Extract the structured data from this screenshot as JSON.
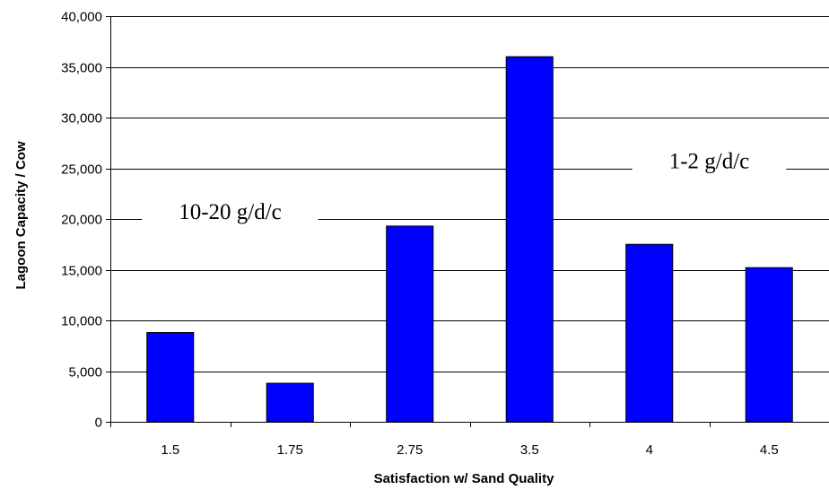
{
  "chart_data": {
    "type": "bar",
    "categories": [
      "1.5",
      "1.75",
      "2.75",
      "3.5",
      "4",
      "4.5"
    ],
    "values": [
      8800,
      3800,
      19300,
      36000,
      17500,
      15200
    ],
    "xlabel": "Satisfaction w/ Sand Quality",
    "ylabel": "Lagoon Capacity / Cow",
    "ylim": [
      0,
      40000
    ],
    "yticks": [
      "0",
      "5,000",
      "10,000",
      "15,000",
      "20,000",
      "25,000",
      "30,000",
      "35,000",
      "40,000"
    ],
    "grid": true,
    "legend": "none",
    "bar_color": "#0000FF",
    "bar_edge_color": "#000000",
    "annotations": [
      {
        "text": "10-20 g/d/c",
        "x_between": [
          "1.5",
          "1.75"
        ],
        "y": 20000
      },
      {
        "text": "1-2 g/d/c",
        "x_between": [
          "4",
          "4.5"
        ],
        "y": 25000
      }
    ]
  }
}
